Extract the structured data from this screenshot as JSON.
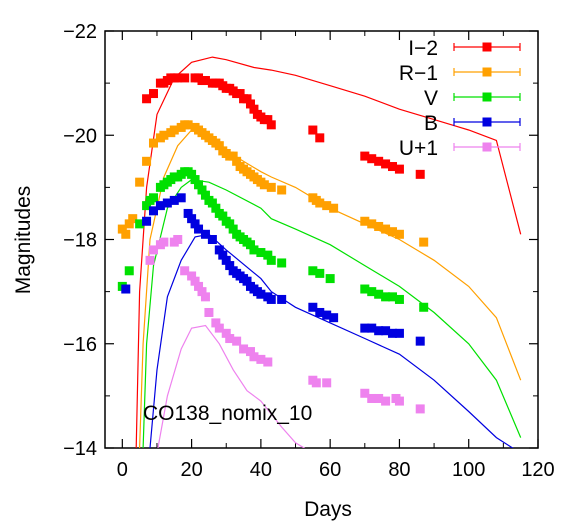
{
  "chart_data": {
    "type": "scatter",
    "title": "",
    "xlabel": "Days",
    "ylabel": "Magnitudes",
    "xlim": [
      -5,
      120
    ],
    "ylim": [
      -14,
      -22
    ],
    "y_inverted": true,
    "x_ticks": [
      0,
      20,
      40,
      60,
      80,
      100,
      120
    ],
    "x_tick_labels": [
      "0",
      "20",
      "40",
      "60",
      "80",
      "100",
      "120"
    ],
    "y_ticks": [
      -14,
      -16,
      -18,
      -20,
      -22
    ],
    "y_tick_labels": [
      "−14",
      "−16",
      "−18",
      "−20",
      "−22"
    ],
    "legend_position": "top-right",
    "annotation": "CO138_nomix_10",
    "grid": false,
    "series": [
      {
        "name": "I−2",
        "color": "#ff0000",
        "points": [
          [
            7,
            -20.7
          ],
          [
            9,
            -20.8
          ],
          [
            11,
            -21.0
          ],
          [
            12,
            -21.0
          ],
          [
            13,
            -21.05
          ],
          [
            14,
            -21.1
          ],
          [
            15,
            -21.1
          ],
          [
            16,
            -21.1
          ],
          [
            18,
            -21.1
          ],
          [
            21,
            -21.1
          ],
          [
            22,
            -21.1
          ],
          [
            23,
            -21.05
          ],
          [
            24,
            -21.05
          ],
          [
            26,
            -21.0
          ],
          [
            27,
            -21.0
          ],
          [
            28,
            -21.0
          ],
          [
            29,
            -20.95
          ],
          [
            30,
            -20.9
          ],
          [
            31,
            -20.9
          ],
          [
            32,
            -20.85
          ],
          [
            33,
            -20.8
          ],
          [
            34,
            -20.8
          ],
          [
            35,
            -20.7
          ],
          [
            36,
            -20.7
          ],
          [
            37,
            -20.6
          ],
          [
            38,
            -20.5
          ],
          [
            39,
            -20.4
          ],
          [
            40,
            -20.35
          ],
          [
            41,
            -20.3
          ],
          [
            42,
            -20.3
          ],
          [
            43,
            -20.2
          ],
          [
            55,
            -20.1
          ],
          [
            57,
            -19.95
          ],
          [
            70,
            -19.6
          ],
          [
            72,
            -19.55
          ],
          [
            74,
            -19.5
          ],
          [
            76,
            -19.45
          ],
          [
            78,
            -19.4
          ],
          [
            80,
            -19.35
          ],
          [
            86,
            -19.25
          ]
        ],
        "model": [
          [
            4,
            -14
          ],
          [
            5,
            -17
          ],
          [
            7,
            -19
          ],
          [
            10,
            -20.4
          ],
          [
            15,
            -21.1
          ],
          [
            20,
            -21.4
          ],
          [
            26,
            -21.5
          ],
          [
            30,
            -21.45
          ],
          [
            38,
            -21.3
          ],
          [
            43,
            -21.25
          ],
          [
            50,
            -21.15
          ],
          [
            60,
            -20.95
          ],
          [
            70,
            -20.75
          ],
          [
            80,
            -20.5
          ],
          [
            90,
            -20.3
          ],
          [
            100,
            -20.1
          ],
          [
            108,
            -19.9
          ],
          [
            115,
            -18.1
          ]
        ]
      },
      {
        "name": "R−1",
        "color": "#ffa000",
        "points": [
          [
            0,
            -18.2
          ],
          [
            1,
            -18.1
          ],
          [
            2,
            -18.3
          ],
          [
            3,
            -18.4
          ],
          [
            5,
            -19.1
          ],
          [
            7,
            -19.5
          ],
          [
            9,
            -19.85
          ],
          [
            11,
            -19.95
          ],
          [
            12,
            -20.0
          ],
          [
            14,
            -20.05
          ],
          [
            15,
            -20.1
          ],
          [
            17,
            -20.15
          ],
          [
            18,
            -20.2
          ],
          [
            19,
            -20.2
          ],
          [
            21,
            -20.15
          ],
          [
            22,
            -20.1
          ],
          [
            23,
            -20.05
          ],
          [
            24,
            -20.0
          ],
          [
            25,
            -19.95
          ],
          [
            26,
            -19.9
          ],
          [
            27,
            -19.85
          ],
          [
            28,
            -19.8
          ],
          [
            29,
            -19.7
          ],
          [
            30,
            -19.65
          ],
          [
            31,
            -19.6
          ],
          [
            32,
            -19.6
          ],
          [
            33,
            -19.5
          ],
          [
            34,
            -19.4
          ],
          [
            35,
            -19.35
          ],
          [
            36,
            -19.3
          ],
          [
            37,
            -19.25
          ],
          [
            38,
            -19.2
          ],
          [
            39,
            -19.15
          ],
          [
            40,
            -19.1
          ],
          [
            41,
            -19.05
          ],
          [
            43,
            -19.0
          ],
          [
            46,
            -18.95
          ],
          [
            55,
            -18.8
          ],
          [
            56,
            -18.75
          ],
          [
            57,
            -18.7
          ],
          [
            59,
            -18.65
          ],
          [
            61,
            -18.6
          ],
          [
            70,
            -18.35
          ],
          [
            72,
            -18.3
          ],
          [
            74,
            -18.25
          ],
          [
            76,
            -18.2
          ],
          [
            78,
            -18.15
          ],
          [
            80,
            -18.1
          ],
          [
            87,
            -17.95
          ]
        ],
        "model": [
          [
            5,
            -14
          ],
          [
            6,
            -16
          ],
          [
            8,
            -18
          ],
          [
            12,
            -19.2
          ],
          [
            16,
            -19.8
          ],
          [
            20,
            -20.1
          ],
          [
            24,
            -20.0
          ],
          [
            30,
            -19.7
          ],
          [
            40,
            -19.3
          ],
          [
            43,
            -19.2
          ],
          [
            50,
            -19.0
          ],
          [
            60,
            -18.6
          ],
          [
            70,
            -18.3
          ],
          [
            80,
            -18.0
          ],
          [
            90,
            -17.6
          ],
          [
            100,
            -17.1
          ],
          [
            108,
            -16.5
          ],
          [
            115,
            -15.3
          ]
        ]
      },
      {
        "name": "V",
        "color": "#00e000",
        "points": [
          [
            0,
            -17.1
          ],
          [
            2,
            -17.4
          ],
          [
            5,
            -18.3
          ],
          [
            7,
            -18.65
          ],
          [
            8,
            -18.75
          ],
          [
            9,
            -18.8
          ],
          [
            11,
            -19.0
          ],
          [
            12,
            -19.05
          ],
          [
            13,
            -19.1
          ],
          [
            14,
            -19.15
          ],
          [
            15,
            -19.2
          ],
          [
            16,
            -19.2
          ],
          [
            17,
            -19.25
          ],
          [
            18,
            -19.3
          ],
          [
            19,
            -19.3
          ],
          [
            20,
            -19.25
          ],
          [
            21,
            -19.15
          ],
          [
            22,
            -19.05
          ],
          [
            23,
            -18.95
          ],
          [
            24,
            -18.85
          ],
          [
            25,
            -18.75
          ],
          [
            26,
            -18.7
          ],
          [
            27,
            -18.6
          ],
          [
            28,
            -18.5
          ],
          [
            29,
            -18.45
          ],
          [
            30,
            -18.35
          ],
          [
            31,
            -18.3
          ],
          [
            32,
            -18.2
          ],
          [
            33,
            -18.1
          ],
          [
            34,
            -18.05
          ],
          [
            35,
            -18.0
          ],
          [
            36,
            -17.95
          ],
          [
            37,
            -17.9
          ],
          [
            38,
            -17.8
          ],
          [
            40,
            -17.75
          ],
          [
            42,
            -17.7
          ],
          [
            43,
            -17.6
          ],
          [
            46,
            -17.55
          ],
          [
            55,
            -17.4
          ],
          [
            57,
            -17.35
          ],
          [
            60,
            -17.25
          ],
          [
            70,
            -17.05
          ],
          [
            72,
            -17.0
          ],
          [
            74,
            -16.95
          ],
          [
            76,
            -16.9
          ],
          [
            78,
            -16.9
          ],
          [
            80,
            -16.85
          ],
          [
            87,
            -16.7
          ]
        ],
        "model": [
          [
            6,
            -14
          ],
          [
            7,
            -16
          ],
          [
            9,
            -17.5
          ],
          [
            13,
            -18.6
          ],
          [
            17,
            -19.0
          ],
          [
            20,
            -19.15
          ],
          [
            25,
            -19.1
          ],
          [
            30,
            -18.95
          ],
          [
            40,
            -18.6
          ],
          [
            43,
            -18.4
          ],
          [
            50,
            -18.2
          ],
          [
            60,
            -17.9
          ],
          [
            70,
            -17.5
          ],
          [
            80,
            -17.1
          ],
          [
            90,
            -16.6
          ],
          [
            100,
            -16.0
          ],
          [
            108,
            -15.3
          ],
          [
            115,
            -14.2
          ]
        ]
      },
      {
        "name": "B",
        "color": "#0000e0",
        "points": [
          [
            1,
            -17.05
          ],
          [
            7,
            -18.35
          ],
          [
            9,
            -18.55
          ],
          [
            11,
            -18.65
          ],
          [
            13,
            -18.7
          ],
          [
            15,
            -18.75
          ],
          [
            17,
            -18.8
          ],
          [
            19,
            -18.5
          ],
          [
            20,
            -18.4
          ],
          [
            21,
            -18.3
          ],
          [
            22,
            -18.2
          ],
          [
            24,
            -18.1
          ],
          [
            26,
            -18.0
          ],
          [
            28,
            -17.8
          ],
          [
            29,
            -17.7
          ],
          [
            30,
            -17.6
          ],
          [
            31,
            -17.5
          ],
          [
            32,
            -17.4
          ],
          [
            33,
            -17.35
          ],
          [
            34,
            -17.3
          ],
          [
            35,
            -17.25
          ],
          [
            36,
            -17.2
          ],
          [
            37,
            -17.1
          ],
          [
            38,
            -17.05
          ],
          [
            39,
            -17.0
          ],
          [
            40,
            -16.95
          ],
          [
            42,
            -16.9
          ],
          [
            43,
            -16.85
          ],
          [
            46,
            -16.85
          ],
          [
            55,
            -16.7
          ],
          [
            57,
            -16.6
          ],
          [
            59,
            -16.55
          ],
          [
            61,
            -16.5
          ],
          [
            70,
            -16.3
          ],
          [
            72,
            -16.3
          ],
          [
            74,
            -16.25
          ],
          [
            76,
            -16.25
          ],
          [
            78,
            -16.2
          ],
          [
            80,
            -16.2
          ],
          [
            86,
            -16.05
          ]
        ],
        "model": [
          [
            8,
            -14
          ],
          [
            10,
            -15.5
          ],
          [
            13,
            -16.9
          ],
          [
            17,
            -17.6
          ],
          [
            21,
            -18.05
          ],
          [
            25,
            -18.1
          ],
          [
            30,
            -17.8
          ],
          [
            40,
            -17.25
          ],
          [
            43,
            -17.0
          ],
          [
            50,
            -16.7
          ],
          [
            60,
            -16.4
          ],
          [
            70,
            -16.1
          ],
          [
            80,
            -15.8
          ],
          [
            90,
            -15.3
          ],
          [
            100,
            -14.7
          ],
          [
            108,
            -14.2
          ],
          [
            115,
            -13.9
          ]
        ]
      },
      {
        "name": "U+1",
        "color": "#ee82ee",
        "points": [
          [
            8,
            -17.6
          ],
          [
            9,
            -17.8
          ],
          [
            11,
            -17.9
          ],
          [
            12,
            -17.95
          ],
          [
            15,
            -17.95
          ],
          [
            16,
            -18.0
          ],
          [
            18,
            -17.4
          ],
          [
            20,
            -17.3
          ],
          [
            21,
            -17.2
          ],
          [
            22,
            -17.1
          ],
          [
            23,
            -17.0
          ],
          [
            24,
            -16.9
          ],
          [
            25,
            -16.6
          ],
          [
            27,
            -16.4
          ],
          [
            28,
            -16.3
          ],
          [
            30,
            -16.2
          ],
          [
            31,
            -16.1
          ],
          [
            33,
            -16.05
          ],
          [
            35,
            -15.9
          ],
          [
            37,
            -15.85
          ],
          [
            38,
            -15.75
          ],
          [
            40,
            -15.7
          ],
          [
            42,
            -15.65
          ],
          [
            55,
            -15.3
          ],
          [
            56,
            -15.25
          ],
          [
            59,
            -15.25
          ],
          [
            70,
            -15.05
          ],
          [
            72,
            -14.95
          ],
          [
            74,
            -14.95
          ],
          [
            76,
            -14.9
          ],
          [
            79,
            -14.95
          ],
          [
            80,
            -14.9
          ],
          [
            86,
            -14.75
          ]
        ],
        "model": [
          [
            10,
            -13.9
          ],
          [
            13,
            -15
          ],
          [
            17,
            -15.9
          ],
          [
            20,
            -16.3
          ],
          [
            24,
            -16.35
          ],
          [
            28,
            -16.0
          ],
          [
            32,
            -15.5
          ],
          [
            36,
            -15.1
          ],
          [
            40,
            -14.9
          ],
          [
            43,
            -14.65
          ],
          [
            46,
            -14.4
          ],
          [
            50,
            -14.1
          ],
          [
            55,
            -13.9
          ]
        ]
      }
    ]
  }
}
